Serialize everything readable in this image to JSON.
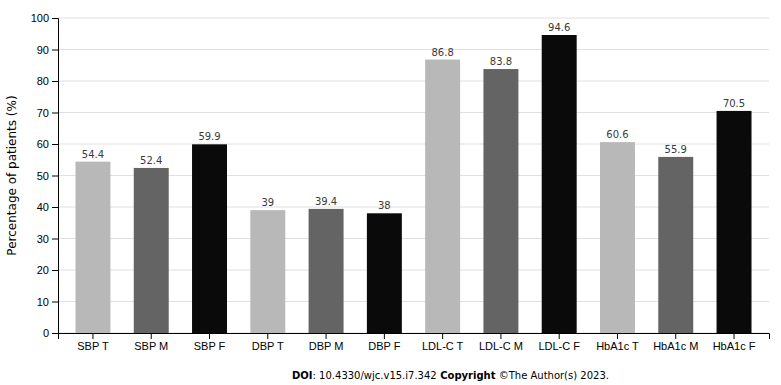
{
  "chart_data": {
    "type": "bar",
    "categories": [
      "SBP T",
      "SBP M",
      "SBP F",
      "DBP T",
      "DBP M",
      "DBP F",
      "LDL-C T",
      "LDL-C M",
      "LDL-C F",
      "HbA1c T",
      "HbA1c M",
      "HbA1c F"
    ],
    "values": [
      54.4,
      52.4,
      59.9,
      39,
      39.4,
      38,
      86.8,
      83.8,
      94.6,
      60.6,
      55.9,
      70.5
    ],
    "colors": [
      "#b8b8b8",
      "#646464",
      "#0a0a0a",
      "#b8b8b8",
      "#646464",
      "#0a0a0a",
      "#b8b8b8",
      "#646464",
      "#0a0a0a",
      "#b8b8b8",
      "#646464",
      "#0a0a0a"
    ],
    "ylabel": "Percentage of patients (%)",
    "ylim": [
      0,
      100
    ],
    "yticks": [
      0,
      10,
      20,
      30,
      40,
      50,
      60,
      70,
      80,
      90,
      100
    ],
    "grid": true,
    "data_labels": true,
    "annotations": [
      "DOI",
      ": 10.4330/wjc.v15.i7.342",
      " Copyright",
      " ©The Author(s) 2023."
    ]
  }
}
